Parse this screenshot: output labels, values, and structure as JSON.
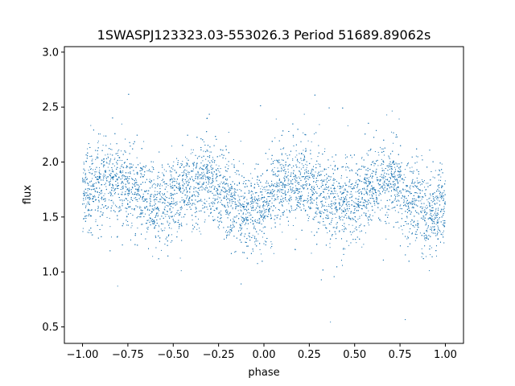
{
  "chart_data": {
    "type": "scatter",
    "title": "1SWASPJ123323.03-553026.3 Period 51689.89062s",
    "xlabel": "phase",
    "ylabel": "flux",
    "xlim": [
      -1.1,
      1.1
    ],
    "ylim": [
      0.35,
      3.05
    ],
    "x_ticks": [
      -1.0,
      -0.75,
      -0.5,
      -0.25,
      0.0,
      0.25,
      0.5,
      0.75,
      1.0
    ],
    "x_tick_labels": [
      "−1.00",
      "−0.75",
      "−0.50",
      "−0.25",
      "0.00",
      "0.25",
      "0.50",
      "0.75",
      "1.00"
    ],
    "y_ticks": [
      0.5,
      1.0,
      1.5,
      2.0,
      2.5,
      3.0
    ],
    "y_tick_labels": [
      "0.5",
      "1.0",
      "1.5",
      "2.0",
      "2.5",
      "3.0"
    ],
    "grid": false,
    "legend": "none",
    "marker_color": "#1f77b4",
    "series": [
      {
        "x": [
          -1.0,
          -0.9,
          -0.8,
          -0.7,
          -0.6,
          -0.5,
          -0.4,
          -0.3,
          -0.2,
          -0.1,
          0.0,
          0.1,
          0.2,
          0.3,
          0.4,
          0.5,
          0.6,
          0.7,
          0.8,
          0.9,
          1.0
        ],
        "y": [
          1.72,
          1.78,
          1.82,
          1.74,
          1.62,
          1.66,
          1.78,
          1.83,
          1.68,
          1.5,
          1.62,
          1.78,
          1.82,
          1.74,
          1.62,
          1.66,
          1.78,
          1.83,
          1.68,
          1.5,
          1.6
        ],
        "scatter": 0.18,
        "point_count": 9000
      }
    ]
  }
}
